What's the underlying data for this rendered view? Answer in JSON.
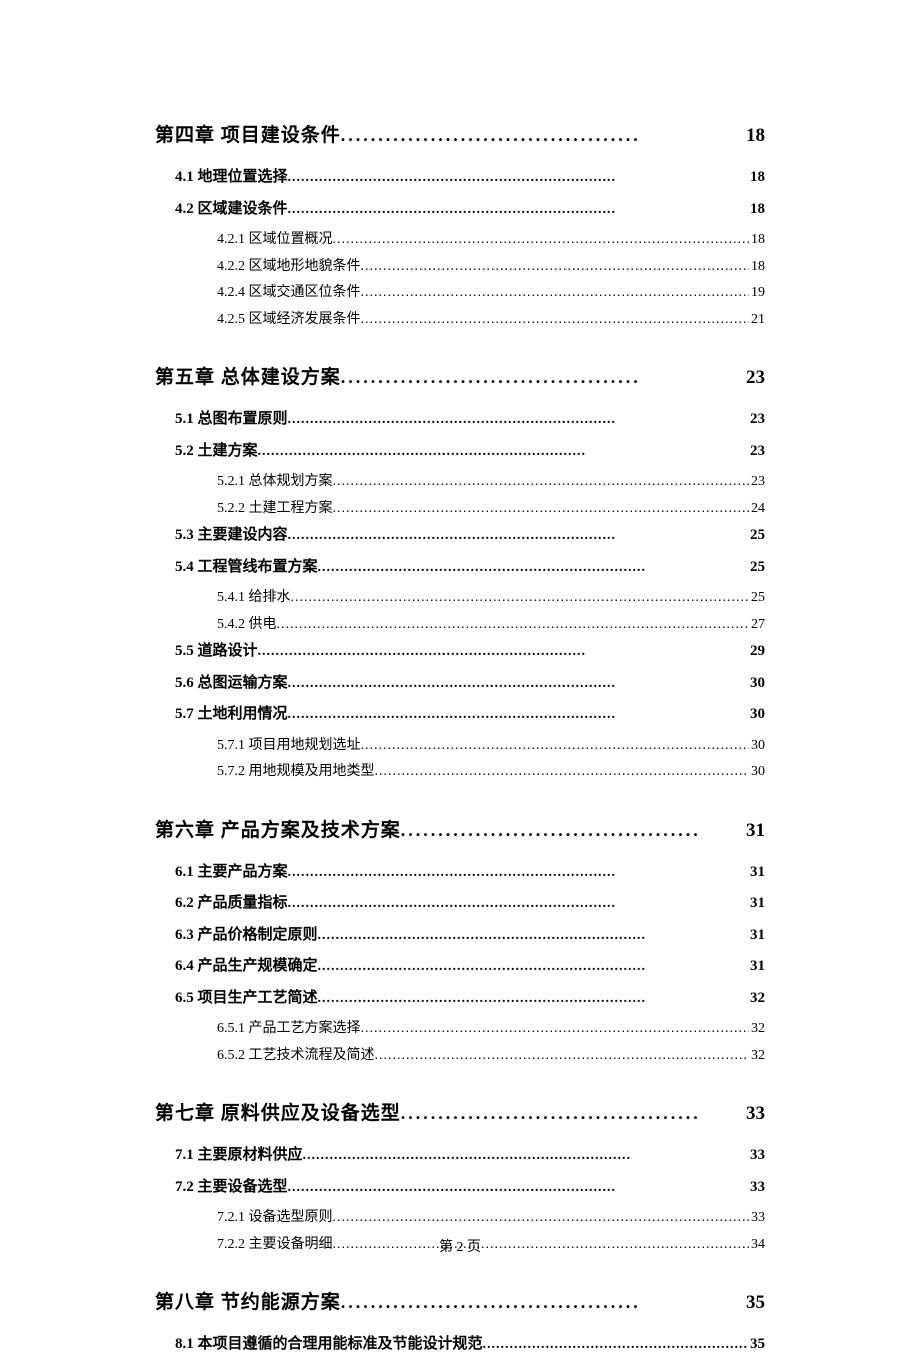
{
  "footer": "第 2 页",
  "dots_chapter": "........................................",
  "dots_section": ".........................................................................",
  "dots_sub": ".................................................................................................................................",
  "toc": [
    {
      "type": "chapter",
      "label": "第四章 项目建设条件",
      "page": "18"
    },
    {
      "type": "section",
      "label": "4.1 地理位置选择",
      "page": "18"
    },
    {
      "type": "section",
      "label": "4.2 区域建设条件",
      "page": "18"
    },
    {
      "type": "sub",
      "label": "4.2.1 区域位置概况",
      "page": "18"
    },
    {
      "type": "sub",
      "label": "4.2.2 区域地形地貌条件",
      "page": "18"
    },
    {
      "type": "sub",
      "label": "4.2.4 区域交通区位条件",
      "page": "19"
    },
    {
      "type": "sub",
      "label": "4.2.5 区域经济发展条件",
      "page": "21"
    },
    {
      "type": "chapter",
      "label": "第五章 总体建设方案",
      "page": "23"
    },
    {
      "type": "section",
      "label": "5.1 总图布置原则",
      "page": "23"
    },
    {
      "type": "section",
      "label": "5.2 土建方案",
      "page": "23"
    },
    {
      "type": "sub",
      "label": "5.2.1 总体规划方案",
      "page": "23"
    },
    {
      "type": "sub",
      "label": "5.2.2 土建工程方案",
      "page": "24"
    },
    {
      "type": "section",
      "label": "5.3 主要建设内容",
      "page": "25"
    },
    {
      "type": "section",
      "label": "5.4 工程管线布置方案",
      "page": "25"
    },
    {
      "type": "sub",
      "label": "5.4.1 给排水",
      "page": "25"
    },
    {
      "type": "sub",
      "label": "5.4.2 供电",
      "page": "27"
    },
    {
      "type": "section",
      "label": "5.5 道路设计",
      "page": "29"
    },
    {
      "type": "section",
      "label": "5.6 总图运输方案",
      "page": "30"
    },
    {
      "type": "section",
      "label": "5.7 土地利用情况",
      "page": "30"
    },
    {
      "type": "sub",
      "label": "5.7.1 项目用地规划选址",
      "page": "30"
    },
    {
      "type": "sub",
      "label": "5.7.2 用地规模及用地类型",
      "page": "30"
    },
    {
      "type": "chapter",
      "label": "第六章 产品方案及技术方案",
      "page": "31"
    },
    {
      "type": "section",
      "label": "6.1 主要产品方案",
      "page": "31"
    },
    {
      "type": "section",
      "label": "6.2 产品质量指标",
      "page": "31"
    },
    {
      "type": "section",
      "label": "6.3 产品价格制定原则",
      "page": "31"
    },
    {
      "type": "section",
      "label": "6.4 产品生产规模确定",
      "page": "31"
    },
    {
      "type": "section",
      "label": "6.5 项目生产工艺简述",
      "page": "32"
    },
    {
      "type": "sub",
      "label": "6.5.1 产品工艺方案选择",
      "page": "32"
    },
    {
      "type": "sub",
      "label": "6.5.2 工艺技术流程及简述",
      "page": "32"
    },
    {
      "type": "chapter",
      "label": "第七章 原料供应及设备选型",
      "page": "33"
    },
    {
      "type": "section",
      "label": "7.1 主要原材料供应",
      "page": "33"
    },
    {
      "type": "section",
      "label": "7.2 主要设备选型",
      "page": "33"
    },
    {
      "type": "sub",
      "label": "7.2.1 设备选型原则",
      "page": "33"
    },
    {
      "type": "sub",
      "label": "7.2.2 主要设备明细",
      "page": "34"
    },
    {
      "type": "chapter",
      "label": "第八章 节约能源方案",
      "page": "35"
    },
    {
      "type": "section",
      "label": "8.1 本项目遵循的合理用能标准及节能设计规范",
      "page": "35"
    }
  ]
}
